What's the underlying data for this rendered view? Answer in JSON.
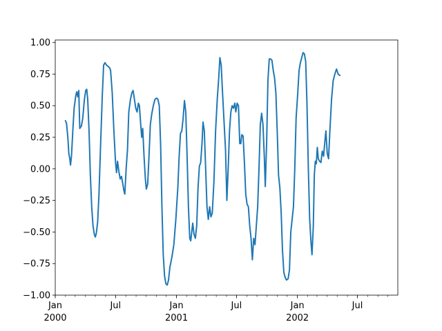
{
  "chart_data": {
    "type": "line",
    "title": "",
    "xlabel": "",
    "ylabel": "",
    "xlim": [
      "2000-01-01",
      "2002-10-31"
    ],
    "ylim": [
      -1.0,
      1.02
    ],
    "grid": false,
    "legend": "none",
    "x_major_ticks": [
      {
        "date": "2000-01-01",
        "label": "Jan",
        "sublabel": "2000"
      },
      {
        "date": "2000-07-01",
        "label": "Jul",
        "sublabel": ""
      },
      {
        "date": "2001-01-01",
        "label": "Jan",
        "sublabel": "2001"
      },
      {
        "date": "2001-07-01",
        "label": "Jul",
        "sublabel": ""
      },
      {
        "date": "2002-01-01",
        "label": "Jan",
        "sublabel": "2002"
      },
      {
        "date": "2002-07-01",
        "label": "Jul",
        "sublabel": ""
      }
    ],
    "y_ticks": [
      {
        "value": 1.0,
        "label": "1.00"
      },
      {
        "value": 0.75,
        "label": "0.75"
      },
      {
        "value": 0.5,
        "label": "0.50"
      },
      {
        "value": 0.25,
        "label": "0.25"
      },
      {
        "value": 0.0,
        "label": "0.00"
      },
      {
        "value": -0.25,
        "label": "−0.25"
      },
      {
        "value": -0.5,
        "label": "−0.50"
      },
      {
        "value": -0.75,
        "label": "−0.75"
      },
      {
        "value": -1.0,
        "label": "−1.00"
      }
    ],
    "series": [
      {
        "color": "#1f77b4",
        "points": [
          [
            "2000-02-01",
            0.38
          ],
          [
            "2000-02-04",
            0.36
          ],
          [
            "2000-02-08",
            0.25
          ],
          [
            "2000-02-11",
            0.12
          ],
          [
            "2000-02-14",
            0.08
          ],
          [
            "2000-02-16",
            0.03
          ],
          [
            "2000-02-19",
            0.1
          ],
          [
            "2000-02-23",
            0.3
          ],
          [
            "2000-02-27",
            0.48
          ],
          [
            "2000-03-03",
            0.58
          ],
          [
            "2000-03-06",
            0.61
          ],
          [
            "2000-03-09",
            0.57
          ],
          [
            "2000-03-12",
            0.62
          ],
          [
            "2000-03-15",
            0.32
          ],
          [
            "2000-03-20",
            0.34
          ],
          [
            "2000-03-24",
            0.4
          ],
          [
            "2000-03-29",
            0.55
          ],
          [
            "2000-04-02",
            0.62
          ],
          [
            "2000-04-05",
            0.63
          ],
          [
            "2000-04-08",
            0.55
          ],
          [
            "2000-04-12",
            0.3
          ],
          [
            "2000-04-16",
            -0.05
          ],
          [
            "2000-04-20",
            -0.3
          ],
          [
            "2000-04-24",
            -0.45
          ],
          [
            "2000-04-28",
            -0.52
          ],
          [
            "2000-05-01",
            -0.54
          ],
          [
            "2000-05-04",
            -0.51
          ],
          [
            "2000-05-08",
            -0.42
          ],
          [
            "2000-05-12",
            -0.2
          ],
          [
            "2000-05-17",
            0.2
          ],
          [
            "2000-05-22",
            0.58
          ],
          [
            "2000-05-26",
            0.82
          ],
          [
            "2000-05-30",
            0.84
          ],
          [
            "2000-06-04",
            0.82
          ],
          [
            "2000-06-09",
            0.81
          ],
          [
            "2000-06-13",
            0.8
          ],
          [
            "2000-06-16",
            0.78
          ],
          [
            "2000-06-21",
            0.6
          ],
          [
            "2000-06-26",
            0.3
          ],
          [
            "2000-07-01",
            0.05
          ],
          [
            "2000-07-04",
            -0.03
          ],
          [
            "2000-07-07",
            0.06
          ],
          [
            "2000-07-11",
            -0.02
          ],
          [
            "2000-07-15",
            -0.08
          ],
          [
            "2000-07-19",
            -0.06
          ],
          [
            "2000-07-23",
            -0.12
          ],
          [
            "2000-07-26",
            -0.17
          ],
          [
            "2000-07-29",
            -0.2
          ],
          [
            "2000-08-02",
            0.0
          ],
          [
            "2000-08-06",
            0.15
          ],
          [
            "2000-08-10",
            0.45
          ],
          [
            "2000-08-15",
            0.55
          ],
          [
            "2000-08-19",
            0.6
          ],
          [
            "2000-08-23",
            0.62
          ],
          [
            "2000-08-27",
            0.55
          ],
          [
            "2000-08-31",
            0.48
          ],
          [
            "2000-09-04",
            0.45
          ],
          [
            "2000-09-08",
            0.52
          ],
          [
            "2000-09-11",
            0.5
          ],
          [
            "2000-09-15",
            0.35
          ],
          [
            "2000-09-18",
            0.25
          ],
          [
            "2000-09-21",
            0.32
          ],
          [
            "2000-09-25",
            0.1
          ],
          [
            "2000-09-29",
            -0.08
          ],
          [
            "2000-10-02",
            -0.16
          ],
          [
            "2000-10-06",
            -0.12
          ],
          [
            "2000-10-10",
            0.1
          ],
          [
            "2000-10-14",
            0.35
          ],
          [
            "2000-10-18",
            0.43
          ],
          [
            "2000-10-23",
            0.5
          ],
          [
            "2000-10-28",
            0.55
          ],
          [
            "2000-11-02",
            0.56
          ],
          [
            "2000-11-06",
            0.55
          ],
          [
            "2000-11-10",
            0.5
          ],
          [
            "2000-11-14",
            0.2
          ],
          [
            "2000-11-18",
            -0.3
          ],
          [
            "2000-11-22",
            -0.68
          ],
          [
            "2000-11-26",
            -0.85
          ],
          [
            "2000-11-30",
            -0.91
          ],
          [
            "2000-12-04",
            -0.92
          ],
          [
            "2000-12-08",
            -0.88
          ],
          [
            "2000-12-12",
            -0.78
          ],
          [
            "2000-12-18",
            -0.7
          ],
          [
            "2000-12-24",
            -0.6
          ],
          [
            "2000-12-30",
            -0.4
          ],
          [
            "2001-01-05",
            -0.15
          ],
          [
            "2001-01-09",
            0.1
          ],
          [
            "2001-01-13",
            0.28
          ],
          [
            "2001-01-17",
            0.3
          ],
          [
            "2001-01-21",
            0.4
          ],
          [
            "2001-01-25",
            0.54
          ],
          [
            "2001-01-29",
            0.45
          ],
          [
            "2001-02-02",
            0.1
          ],
          [
            "2001-02-06",
            -0.3
          ],
          [
            "2001-02-10",
            -0.55
          ],
          [
            "2001-02-13",
            -0.57
          ],
          [
            "2001-02-16",
            -0.5
          ],
          [
            "2001-02-19",
            -0.43
          ],
          [
            "2001-02-23",
            -0.52
          ],
          [
            "2001-02-27",
            -0.55
          ],
          [
            "2001-03-03",
            -0.45
          ],
          [
            "2001-03-07",
            -0.15
          ],
          [
            "2001-03-11",
            0.02
          ],
          [
            "2001-03-15",
            0.05
          ],
          [
            "2001-03-19",
            0.2
          ],
          [
            "2001-03-22",
            0.37
          ],
          [
            "2001-03-26",
            0.3
          ],
          [
            "2001-03-30",
            0.0
          ],
          [
            "2001-04-03",
            -0.3
          ],
          [
            "2001-04-07",
            -0.4
          ],
          [
            "2001-04-11",
            -0.3
          ],
          [
            "2001-04-15",
            -0.38
          ],
          [
            "2001-04-19",
            -0.35
          ],
          [
            "2001-04-24",
            -0.1
          ],
          [
            "2001-04-29",
            0.3
          ],
          [
            "2001-05-04",
            0.55
          ],
          [
            "2001-05-08",
            0.7
          ],
          [
            "2001-05-12",
            0.88
          ],
          [
            "2001-05-16",
            0.82
          ],
          [
            "2001-05-20",
            0.6
          ],
          [
            "2001-05-25",
            0.35
          ],
          [
            "2001-05-29",
            0.15
          ],
          [
            "2001-06-02",
            -0.25
          ],
          [
            "2001-06-06",
            0.0
          ],
          [
            "2001-06-10",
            0.3
          ],
          [
            "2001-06-14",
            0.45
          ],
          [
            "2001-06-18",
            0.5
          ],
          [
            "2001-06-22",
            0.48
          ],
          [
            "2001-06-26",
            0.52
          ],
          [
            "2001-06-29",
            0.45
          ],
          [
            "2001-07-03",
            0.52
          ],
          [
            "2001-07-07",
            0.5
          ],
          [
            "2001-07-11",
            0.2
          ],
          [
            "2001-07-14",
            0.2
          ],
          [
            "2001-07-17",
            0.27
          ],
          [
            "2001-07-21",
            0.26
          ],
          [
            "2001-07-25",
            0.05
          ],
          [
            "2001-07-29",
            -0.2
          ],
          [
            "2001-08-02",
            -0.28
          ],
          [
            "2001-08-06",
            -0.3
          ],
          [
            "2001-08-10",
            -0.45
          ],
          [
            "2001-08-14",
            -0.55
          ],
          [
            "2001-08-18",
            -0.72
          ],
          [
            "2001-08-22",
            -0.55
          ],
          [
            "2001-08-26",
            -0.6
          ],
          [
            "2001-08-30",
            -0.45
          ],
          [
            "2001-09-03",
            -0.3
          ],
          [
            "2001-09-07",
            0.0
          ],
          [
            "2001-09-11",
            0.35
          ],
          [
            "2001-09-15",
            0.44
          ],
          [
            "2001-09-19",
            0.35
          ],
          [
            "2001-09-23",
            0.1
          ],
          [
            "2001-09-26",
            -0.14
          ],
          [
            "2001-09-30",
            0.2
          ],
          [
            "2001-10-04",
            0.7
          ],
          [
            "2001-10-08",
            0.87
          ],
          [
            "2001-10-12",
            0.87
          ],
          [
            "2001-10-16",
            0.86
          ],
          [
            "2001-10-20",
            0.78
          ],
          [
            "2001-10-24",
            0.72
          ],
          [
            "2001-10-28",
            0.6
          ],
          [
            "2001-11-01",
            0.3
          ],
          [
            "2001-11-05",
            -0.05
          ],
          [
            "2001-11-09",
            -0.15
          ],
          [
            "2001-11-13",
            -0.35
          ],
          [
            "2001-11-17",
            -0.65
          ],
          [
            "2001-11-21",
            -0.82
          ],
          [
            "2001-11-25",
            -0.86
          ],
          [
            "2001-11-29",
            -0.88
          ],
          [
            "2001-12-04",
            -0.87
          ],
          [
            "2001-12-08",
            -0.8
          ],
          [
            "2001-12-12",
            -0.5
          ],
          [
            "2001-12-16",
            -0.4
          ],
          [
            "2001-12-20",
            -0.3
          ],
          [
            "2001-12-24",
            0.0
          ],
          [
            "2001-12-28",
            0.4
          ],
          [
            "2002-01-02",
            0.6
          ],
          [
            "2002-01-06",
            0.78
          ],
          [
            "2002-01-10",
            0.84
          ],
          [
            "2002-01-14",
            0.88
          ],
          [
            "2002-01-18",
            0.92
          ],
          [
            "2002-01-22",
            0.91
          ],
          [
            "2002-01-26",
            0.85
          ],
          [
            "2002-01-30",
            0.5
          ],
          [
            "2002-02-03",
            0.0
          ],
          [
            "2002-02-07",
            -0.4
          ],
          [
            "2002-02-11",
            -0.58
          ],
          [
            "2002-02-14",
            -0.68
          ],
          [
            "2002-02-18",
            -0.45
          ],
          [
            "2002-02-21",
            -0.05
          ],
          [
            "2002-02-24",
            0.06
          ],
          [
            "2002-02-27",
            0.04
          ],
          [
            "2002-03-02",
            0.17
          ],
          [
            "2002-03-05",
            0.08
          ],
          [
            "2002-03-09",
            0.06
          ],
          [
            "2002-03-13",
            0.05
          ],
          [
            "2002-03-17",
            0.14
          ],
          [
            "2002-03-21",
            0.1
          ],
          [
            "2002-03-25",
            0.22
          ],
          [
            "2002-03-28",
            0.3
          ],
          [
            "2002-04-01",
            0.12
          ],
          [
            "2002-04-05",
            0.08
          ],
          [
            "2002-04-09",
            0.3
          ],
          [
            "2002-04-14",
            0.55
          ],
          [
            "2002-04-19",
            0.7
          ],
          [
            "2002-04-24",
            0.75
          ],
          [
            "2002-04-29",
            0.79
          ],
          [
            "2002-05-04",
            0.75
          ],
          [
            "2002-05-09",
            0.74
          ]
        ]
      }
    ]
  }
}
